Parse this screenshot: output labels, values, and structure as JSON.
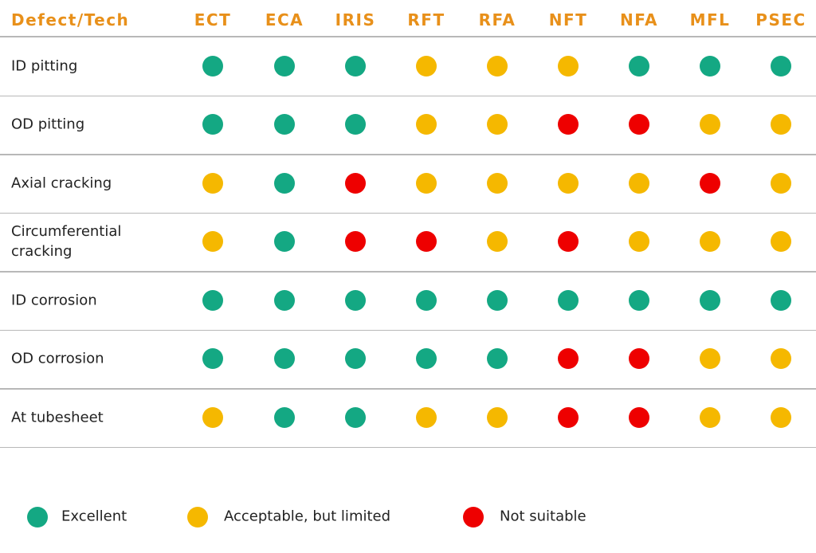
{
  "table": {
    "header": [
      "Defect/Tech",
      "ECT",
      "ECA",
      "IRIS",
      "RFT",
      "RFA",
      "NFT",
      "NFA",
      "MFL",
      "PSEC"
    ],
    "rows": [
      {
        "label": "ID pitting",
        "cells": [
          "Excellent",
          "Excellent",
          "Excellent",
          "Acceptable, but limited",
          "Acceptable, but limited",
          "Acceptable, but limited",
          "Excellent",
          "Excellent",
          "Excellent"
        ]
      },
      {
        "label": "OD pitting",
        "cells": [
          "Excellent",
          "Excellent",
          "Excellent",
          "Acceptable, but limited",
          "Acceptable, but limited",
          "Not suitable",
          "Not suitable",
          "Acceptable, but limited",
          "Acceptable, but limited"
        ]
      },
      {
        "label": "Axial cracking",
        "cells": [
          "Acceptable, but limited",
          "Excellent",
          "Not suitable",
          "Acceptable, but limited",
          "Acceptable, but limited",
          "Acceptable, but limited",
          "Acceptable, but limited",
          "Not suitable",
          "Acceptable, but limited"
        ]
      },
      {
        "label": "Circumferential cracking",
        "cells": [
          "Acceptable, but limited",
          "Excellent",
          "Not suitable",
          "Not suitable",
          "Acceptable, but limited",
          "Not suitable",
          "Acceptable, but limited",
          "Acceptable, but limited",
          "Acceptable, but limited"
        ]
      },
      {
        "label": "ID corrosion",
        "cells": [
          "Excellent",
          "Excellent",
          "Excellent",
          "Excellent",
          "Excellent",
          "Excellent",
          "Excellent",
          "Excellent",
          "Excellent"
        ]
      },
      {
        "label": "OD corrosion",
        "cells": [
          "Excellent",
          "Excellent",
          "Excellent",
          "Excellent",
          "Excellent",
          "Not suitable",
          "Not suitable",
          "Acceptable, but limited",
          "Acceptable, but limited"
        ]
      },
      {
        "label": "At tubesheet",
        "cells": [
          "Acceptable, but limited",
          "Excellent",
          "Excellent",
          "Acceptable, but limited",
          "Acceptable, but limited",
          "Not suitable",
          "Not suitable",
          "Acceptable, but limited",
          "Acceptable, but limited"
        ]
      }
    ]
  },
  "legend": [
    {
      "label": "Excellent",
      "color": "#14a883"
    },
    {
      "label": "Acceptable, but limited",
      "color": "#f5b800"
    },
    {
      "label": "Not suitable",
      "color": "#ee0000"
    }
  ]
}
